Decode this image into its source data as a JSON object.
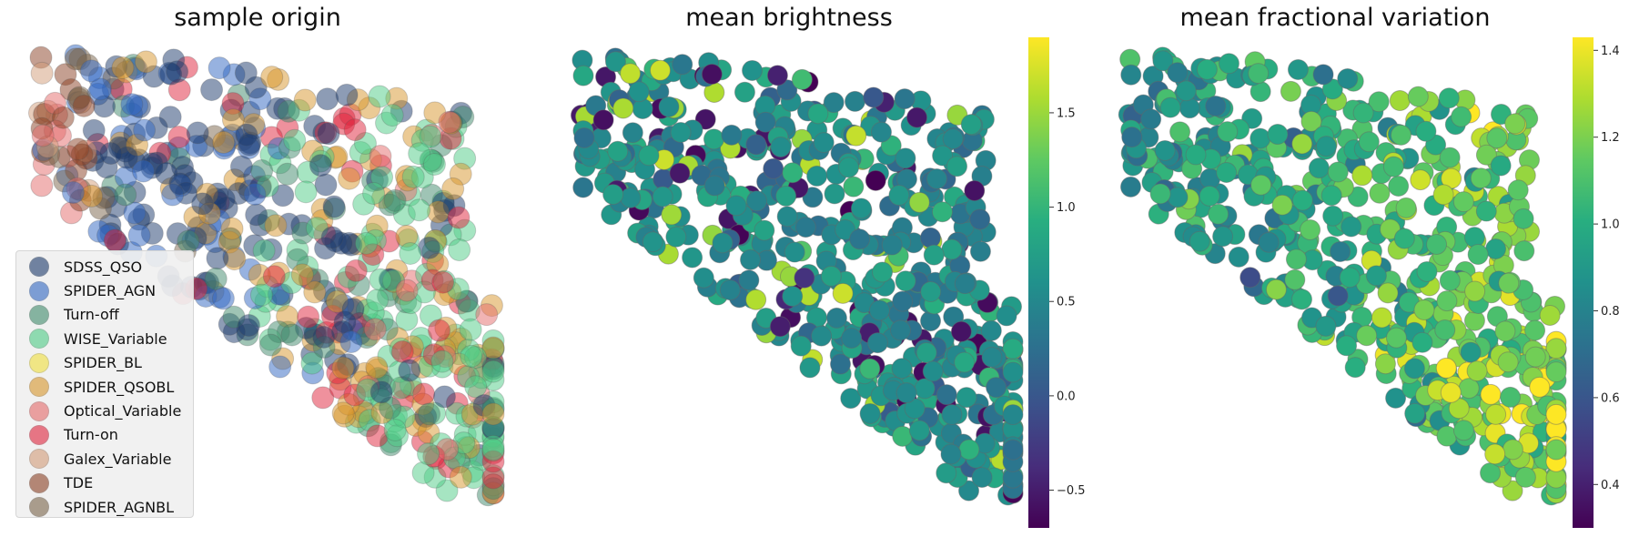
{
  "panels": [
    {
      "title": "sample origin"
    },
    {
      "title": "mean brightness"
    },
    {
      "title": "mean fractional variation"
    }
  ],
  "colors": {
    "SDSS_QSO": "#1b3a6b",
    "SPIDER_AGN": "#2f66c2",
    "Turn-off": "#3f8a6b",
    "WISE_Variable": "#4ecb85",
    "SPIDER_BL": "#f0e03c",
    "SPIDER_QSOBL": "#d8962c",
    "Optical_Variable": "#e46a6a",
    "Turn-on": "#e0243c",
    "Galex_Variable": "#d29b78",
    "TDE": "#8a4024",
    "SPIDER_AGNBL": "#7a644a"
  },
  "chart_data": [
    {
      "type": "scatter",
      "title": "sample origin",
      "legend_placement": "lower-left",
      "grid": false,
      "legend": [
        "SDSS_QSO",
        "SPIDER_AGN",
        "Turn-off",
        "WISE_Variable",
        "SPIDER_BL",
        "SPIDER_QSOBL",
        "Optical_Variable",
        "Turn-on",
        "Galex_Variable",
        "TDE",
        "SPIDER_AGNBL"
      ],
      "color_by": "sample"
    },
    {
      "type": "scatter",
      "title": "mean brightness",
      "grid": false,
      "colormap": "viridis",
      "colorbar": {
        "range": [
          -0.7,
          1.9
        ],
        "ticks": [
          -0.5,
          0.0,
          0.5,
          1.0,
          1.5
        ]
      }
    },
    {
      "type": "scatter",
      "title": "mean fractional variation",
      "grid": false,
      "colormap": "viridis",
      "colorbar": {
        "range": [
          0.3,
          1.43
        ],
        "ticks": [
          0.4,
          0.6,
          0.8,
          1.0,
          1.2,
          1.4
        ]
      }
    }
  ]
}
